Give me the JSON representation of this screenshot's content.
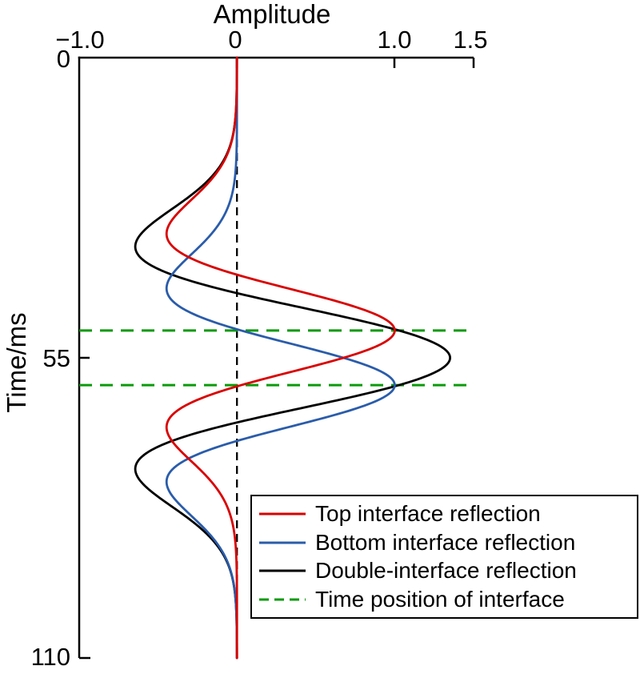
{
  "chart_data": {
    "type": "line",
    "description": "Seismic Ricker-wavelet reflections plotted against two-way time (vertical axis, increasing downward)",
    "x_axis": {
      "label": "Amplitude",
      "position": "top",
      "min": -1.0,
      "max": 1.5,
      "ticks": [
        {
          "value": -1.0,
          "label": "−1.0"
        },
        {
          "value": 0,
          "label": "0"
        },
        {
          "value": 1.0,
          "label": "1.0"
        },
        {
          "value": 1.5,
          "label": "1.5"
        }
      ]
    },
    "y_axis": {
      "label": "Time/ms",
      "position": "left",
      "direction": "down",
      "min": 0,
      "max": 110,
      "ticks": [
        {
          "value": 0,
          "label": "0"
        },
        {
          "value": 55,
          "label": "55"
        },
        {
          "value": 110,
          "label": "110"
        }
      ]
    },
    "zero_reference_line": {
      "amplitude": 0,
      "style": "dashed",
      "color": "#000000"
    },
    "interface_lines": {
      "label": "Time position of interface",
      "times_ms": [
        50,
        60
      ],
      "style": "dashed",
      "color": "#0a9b0a"
    },
    "wavelet_model": {
      "type": "ricker",
      "peak_frequency_hz": 22,
      "sample_step_ms": 0.25
    },
    "draw_order": [
      "double",
      "bottom",
      "top"
    ],
    "series": [
      {
        "id": "top",
        "name": "Top interface reflection",
        "color": "#d90000",
        "style": "solid",
        "center_time_ms": 50,
        "peak_amplitude": 1.0,
        "key_points": {
          "main_peak": {
            "time_ms": 50,
            "amplitude": 1.0
          },
          "side_lobes": {
            "times_ms": [
              32.3,
              67.7
            ],
            "amplitude": -0.45
          }
        }
      },
      {
        "id": "bottom",
        "name": "Bottom interface reflection",
        "color": "#2a5caa",
        "style": "solid",
        "center_time_ms": 60,
        "peak_amplitude": 1.0,
        "key_points": {
          "main_peak": {
            "time_ms": 60,
            "amplitude": 1.0
          },
          "side_lobes": {
            "times_ms": [
              42.3,
              77.7
            ],
            "amplitude": -0.45
          }
        }
      },
      {
        "id": "double",
        "name": "Double-interface reflection",
        "color": "#000000",
        "style": "solid",
        "sum_of": [
          "top",
          "bottom"
        ],
        "key_points": {
          "main_peak": {
            "time_ms": 55,
            "amplitude": 1.35
          },
          "side_lobes": {
            "times_ms": [
              35,
              75
            ],
            "amplitude": -0.64
          }
        }
      }
    ],
    "legend": {
      "position": "bottom-right",
      "border": true,
      "entries": [
        {
          "label": "Top interface reflection",
          "series": "top"
        },
        {
          "label": "Bottom interface reflection",
          "series": "bottom"
        },
        {
          "label": "Double-interface reflection",
          "series": "double"
        },
        {
          "label": "Time position of interface",
          "series": "interface"
        }
      ]
    }
  }
}
